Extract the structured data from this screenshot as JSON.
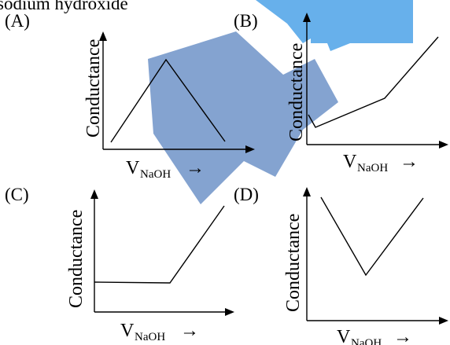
{
  "header_fragment": "sodium hydroxide",
  "axis_symbol": "V",
  "axis_subscript": "NaOH",
  "axis_arrow": "→",
  "y_axis_label": "Conductance",
  "panels": [
    {
      "label": "(A)",
      "ylabel": "Conductance",
      "shape": "rise-then-fall"
    },
    {
      "label": "(B)",
      "ylabel": "Conductance",
      "shape": "dip-then-slow-rise-then-steep-rise"
    },
    {
      "label": "(C)",
      "ylabel": "Conductance",
      "shape": "flat-then-rise"
    },
    {
      "label": "(D)",
      "ylabel": "Conductance",
      "shape": "v-shape"
    }
  ],
  "watermark": {
    "type": "logo",
    "colors": [
      "#3f6fb5",
      "#4da3e8"
    ]
  }
}
